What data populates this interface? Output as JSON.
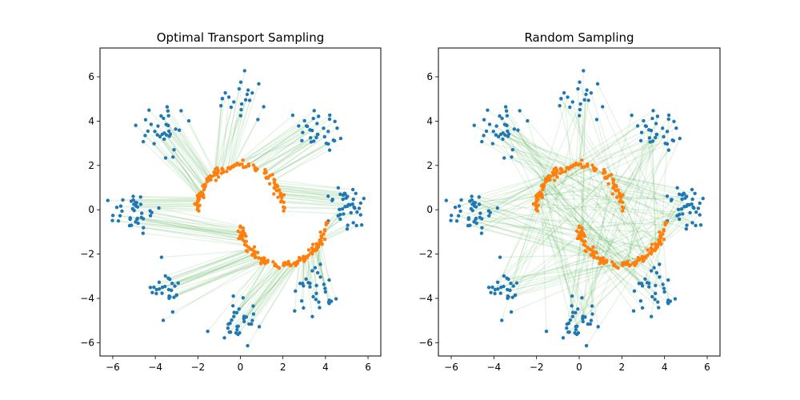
{
  "colors": {
    "source": "#1f77b4",
    "target": "#ff7f0e",
    "lines": "#2ca02c"
  },
  "chart_data": [
    {
      "type": "scatter",
      "title": "Optimal Transport Sampling",
      "xlim": [
        -6.6,
        6.6
      ],
      "ylim": [
        -6.6,
        7.3
      ],
      "xticks": [
        -6,
        -4,
        -2,
        0,
        2,
        4,
        6
      ],
      "yticks": [
        -6,
        -4,
        -2,
        0,
        2,
        4,
        6
      ],
      "xlabel": "",
      "ylabel": "",
      "grid": false,
      "pairing": "optimal-transport",
      "line_alpha": 0.12,
      "series": [
        {
          "role": "source",
          "description": "8 Gaussian clusters on a circle of radius ~5 (x0 samples)",
          "cluster_centers": [
            [
              5,
              0
            ],
            [
              3.54,
              3.54
            ],
            [
              0,
              5
            ],
            [
              -3.54,
              3.54
            ],
            [
              -5,
              0
            ],
            [
              -3.54,
              -3.54
            ],
            [
              0,
              -5
            ],
            [
              3.54,
              -3.54
            ]
          ],
          "cluster_std": 0.5,
          "n": 256
        },
        {
          "role": "target",
          "description": "two interleaved half-moons (x1 samples)",
          "moon_centers": [
            [
              0,
              0
            ],
            [
              2,
              -0.5
            ]
          ],
          "moon_radius": 2,
          "n": 256
        }
      ]
    },
    {
      "type": "scatter",
      "title": "Random Sampling",
      "xlim": [
        -6.6,
        6.6
      ],
      "ylim": [
        -6.6,
        7.3
      ],
      "xticks": [
        -6,
        -4,
        -2,
        0,
        2,
        4,
        6
      ],
      "yticks": [
        -6,
        -4,
        -2,
        0,
        2,
        4,
        6
      ],
      "xlabel": "",
      "ylabel": "",
      "grid": false,
      "pairing": "random",
      "line_alpha": 0.12,
      "series": [
        {
          "role": "source",
          "description": "8 Gaussian clusters on a circle of radius ~5 (x0 samples)",
          "cluster_centers": [
            [
              5,
              0
            ],
            [
              3.54,
              3.54
            ],
            [
              0,
              5
            ],
            [
              -3.54,
              3.54
            ],
            [
              -5,
              0
            ],
            [
              -3.54,
              -3.54
            ],
            [
              0,
              -5
            ],
            [
              3.54,
              -3.54
            ]
          ],
          "cluster_std": 0.5,
          "n": 256
        },
        {
          "role": "target",
          "description": "two interleaved half-moons (x1 samples)",
          "moon_centers": [
            [
              0,
              0
            ],
            [
              2,
              -0.5
            ]
          ],
          "moon_radius": 2,
          "n": 256
        }
      ]
    }
  ]
}
